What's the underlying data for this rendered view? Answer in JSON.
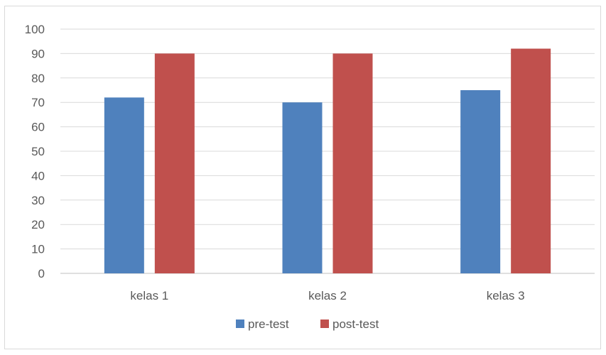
{
  "chart_data": {
    "type": "bar",
    "categories": [
      "kelas 1",
      "kelas 2",
      "kelas 3"
    ],
    "series": [
      {
        "name": "pre-test",
        "values": [
          72,
          70,
          75
        ],
        "color": "#4f81bd"
      },
      {
        "name": "post-test",
        "values": [
          90,
          90,
          92
        ],
        "color": "#c0504d"
      }
    ],
    "ylim": [
      0,
      100
    ],
    "yticks": [
      0,
      10,
      20,
      30,
      40,
      50,
      60,
      70,
      80,
      90,
      100
    ],
    "grid": true,
    "legend": "bottom"
  }
}
